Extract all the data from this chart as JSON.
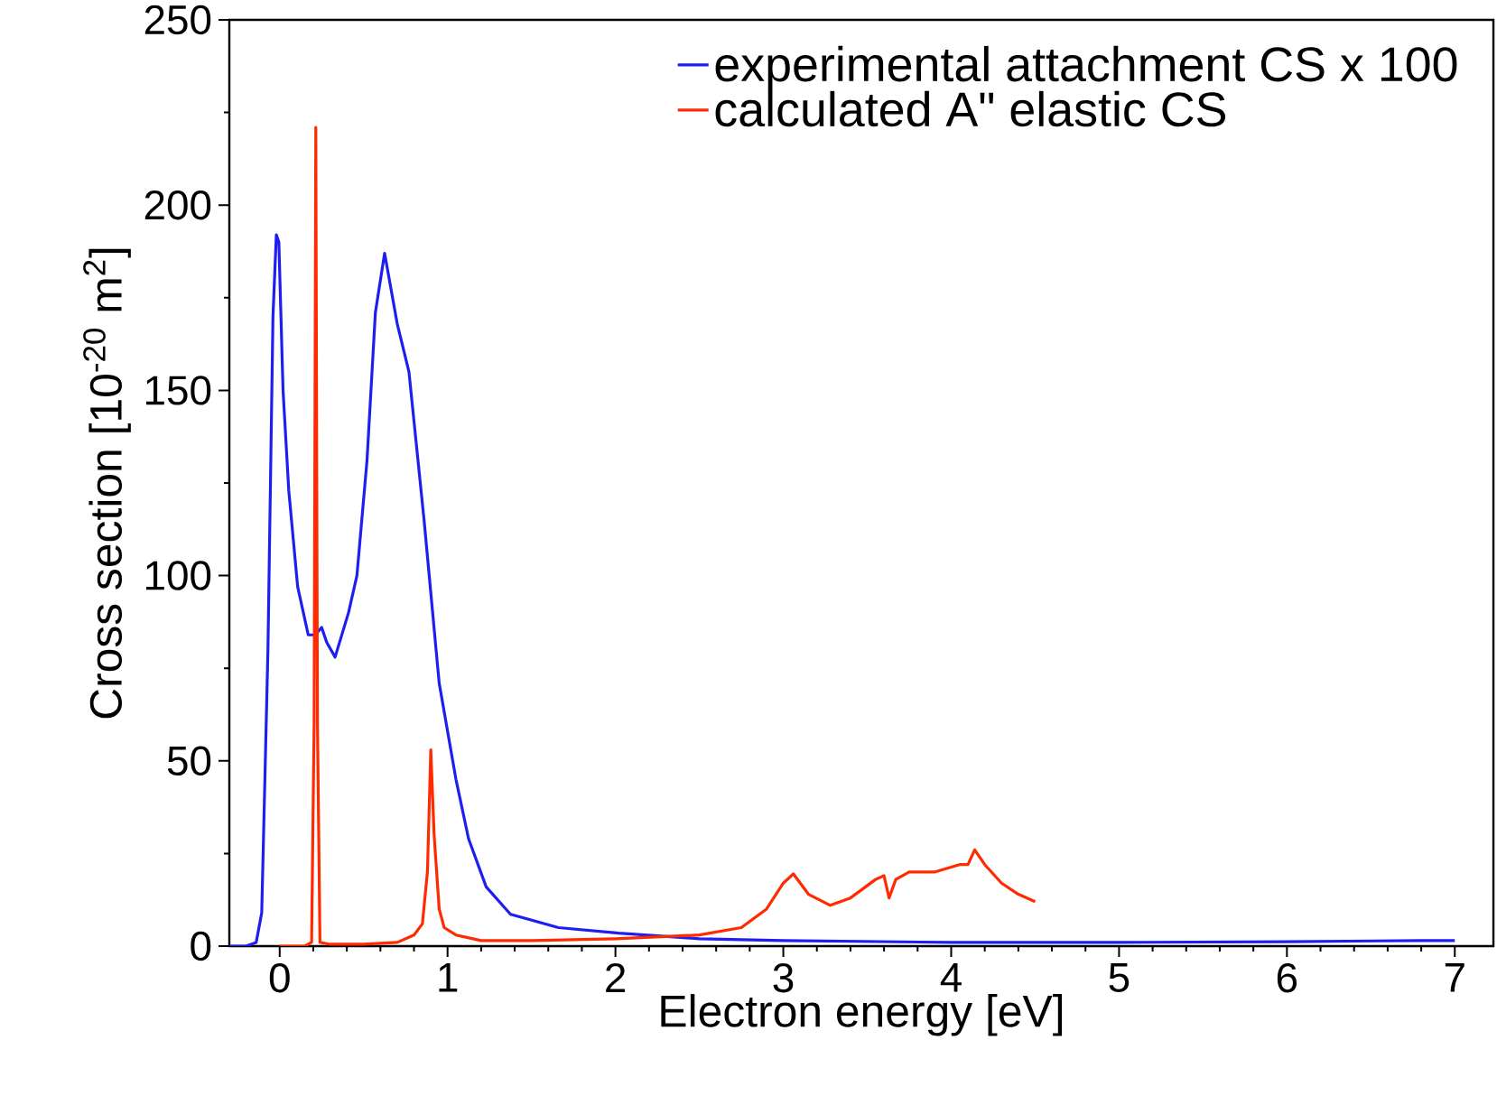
{
  "chart_data": {
    "type": "line",
    "xlabel": "Electron energy [eV]",
    "ylabel": "Cross section [10$^{-20}$ m$^{2}$]",
    "xlim": [
      -0.3,
      7.23
    ],
    "ylim": [
      0,
      250
    ],
    "xticks": [
      0,
      1,
      2,
      3,
      4,
      5,
      6,
      7
    ],
    "yticks": [
      0,
      50,
      100,
      150,
      200,
      250
    ],
    "legend": "top right",
    "grid": false,
    "marker": "none",
    "line_style": "solid",
    "series": [
      {
        "name": "experimental attachment CS x 100",
        "color": "#1e1ef0",
        "x": [
          -0.3,
          -0.2,
          -0.14,
          -0.107,
          -0.07,
          -0.04,
          -0.02,
          -0.005,
          0.02,
          0.054,
          0.107,
          0.17,
          0.21,
          0.25,
          0.28,
          0.33,
          0.41,
          0.46,
          0.52,
          0.57,
          0.625,
          0.7,
          0.77,
          0.86,
          0.95,
          1.05,
          1.125,
          1.23,
          1.375,
          1.66,
          2.02,
          2.5,
          3.0,
          4.0,
          5.0,
          6.0,
          6.8,
          7.0
        ],
        "values": [
          0,
          0,
          1,
          9,
          80,
          170,
          192,
          190,
          150,
          123,
          97,
          84,
          84,
          86,
          82,
          78,
          90,
          100,
          131,
          171,
          187,
          168,
          155,
          115,
          71,
          45,
          29,
          16,
          8.6,
          5,
          3.5,
          2,
          1.5,
          1,
          1,
          1.2,
          1.5,
          1.5
        ]
      },
      {
        "name": "calculated A\" elastic CS",
        "color": "#ff2a00",
        "x": [
          0,
          0.15,
          0.19,
          0.205,
          0.215,
          0.225,
          0.24,
          0.3,
          0.5,
          0.7,
          0.8,
          0.85,
          0.88,
          0.9,
          0.92,
          0.95,
          0.98,
          1.05,
          1.2,
          1.5,
          2.0,
          2.5,
          2.75,
          2.9,
          3.0,
          3.06,
          3.15,
          3.28,
          3.4,
          3.55,
          3.6,
          3.63,
          3.67,
          3.75,
          3.9,
          4.05,
          4.1,
          4.14,
          4.2,
          4.3,
          4.4,
          4.5
        ],
        "values": [
          0,
          0,
          1,
          60,
          221,
          60,
          1,
          0.5,
          0.5,
          1,
          3,
          6,
          20,
          53,
          30,
          10,
          5,
          3,
          1.5,
          1.5,
          2,
          3,
          5,
          10,
          17,
          19.5,
          14,
          11,
          13,
          18,
          19,
          13,
          18,
          20,
          20,
          22,
          22,
          26,
          22,
          17,
          14,
          12
        ]
      }
    ]
  }
}
